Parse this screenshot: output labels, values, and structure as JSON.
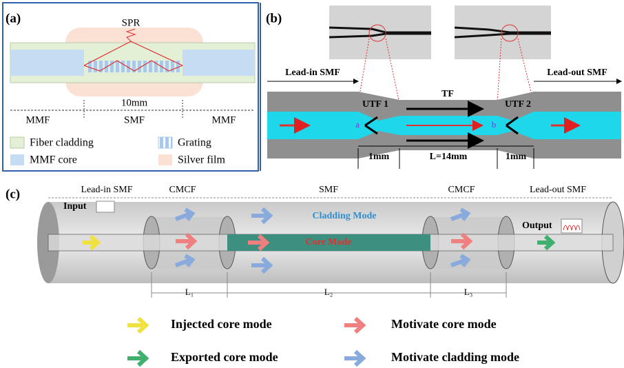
{
  "panel_a": {
    "label": "(a)",
    "spr": "SPR",
    "length": "10mm",
    "segments": [
      "MMF",
      "SMF",
      "MMF"
    ],
    "legend": [
      "Fiber cladding",
      "Grating",
      "MMF core",
      "Silver film"
    ]
  },
  "panel_b": {
    "label": "(b)",
    "lead_in": "Lead-in SMF",
    "lead_out": "Lead-out SMF",
    "tf": "TF",
    "utf1": "UTF 1",
    "utf2": "UTF 2",
    "point_a": "a",
    "point_b": "b",
    "dims": [
      "1mm",
      "L=14mm",
      "1mm"
    ]
  },
  "panel_c": {
    "label": "(c)",
    "sections": [
      "Lead-in SMF",
      "CMCF",
      "SMF",
      "CMCF",
      "Lead-out SMF"
    ],
    "input": "Input",
    "output": "Output",
    "cladding_mode": "Cladding Mode",
    "core_mode": "Core Mode",
    "lengths": [
      "L₁",
      "L₂",
      "L₃"
    ],
    "legend": [
      "Injected core mode",
      "Motivate core mode",
      "Exported core mode",
      "Motivate cladding mode"
    ]
  }
}
